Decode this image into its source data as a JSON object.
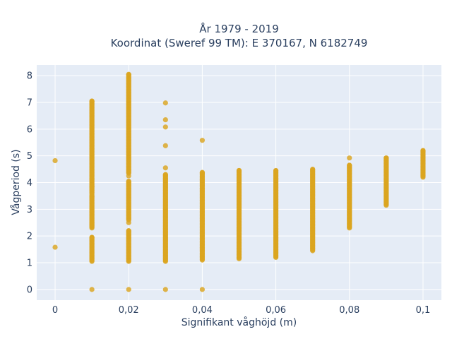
{
  "chart_data": {
    "type": "scatter",
    "title": "År 1979 - 2019",
    "subtitle": "Koordinat (Sweref 99 TM): E 370167, N 6182749",
    "xlabel": "Signifikant våghöjd (m)",
    "ylabel": "Vågperiod (s)",
    "xlim": [
      -0.005,
      0.105
    ],
    "ylim": [
      -0.4,
      8.4
    ],
    "x_ticks": [
      0,
      0.02,
      0.04,
      0.06,
      0.08,
      0.1
    ],
    "x_tick_labels": [
      "0",
      "0,02",
      "0,04",
      "0,06",
      "0,08",
      "0,1"
    ],
    "y_ticks": [
      0,
      1,
      2,
      3,
      4,
      5,
      6,
      7,
      8
    ],
    "y_tick_labels": [
      "0",
      "1",
      "2",
      "3",
      "4",
      "5",
      "6",
      "7",
      "8"
    ],
    "grid": true,
    "marker_color": "#DAA520",
    "background_color": "#E5ECF6",
    "grid_color": "#FFFFFF",
    "points": [
      {
        "x": 0,
        "y": [
          4.82,
          1.58
        ]
      },
      {
        "x": 0.01,
        "ranges": [
          [
            1.05,
            1.95
          ],
          [
            2.3,
            3.5
          ],
          [
            3.6,
            7.05
          ]
        ],
        "y": [
          0,
          2.4,
          2.5,
          3.55,
          3.85
        ]
      },
      {
        "x": 0.02,
        "ranges": [
          [
            1.05,
            2.2
          ],
          [
            2.6,
            4.05
          ],
          [
            4.35,
            8.05
          ]
        ],
        "y": [
          0,
          2.5,
          4.25
        ]
      },
      {
        "x": 0.03,
        "ranges": [
          [
            1.05,
            4.3
          ]
        ],
        "y": [
          0,
          4.55,
          5.38,
          6.08,
          6.35,
          6.98
        ]
      },
      {
        "x": 0.04,
        "ranges": [
          [
            1.1,
            4.38
          ]
        ],
        "y": [
          0,
          5.58
        ]
      },
      {
        "x": 0.05,
        "ranges": [
          [
            1.15,
            4.45
          ]
        ],
        "y": []
      },
      {
        "x": 0.06,
        "ranges": [
          [
            1.2,
            4.45
          ]
        ],
        "y": []
      },
      {
        "x": 0.07,
        "ranges": [
          [
            1.45,
            4.5
          ]
        ],
        "y": []
      },
      {
        "x": 0.08,
        "ranges": [
          [
            2.3,
            4.65
          ]
        ],
        "y": [
          4.92
        ]
      },
      {
        "x": 0.09,
        "ranges": [
          [
            3.15,
            4.92
          ]
        ],
        "y": []
      },
      {
        "x": 0.1,
        "ranges": [
          [
            4.2,
            5.2
          ]
        ],
        "y": []
      }
    ]
  }
}
